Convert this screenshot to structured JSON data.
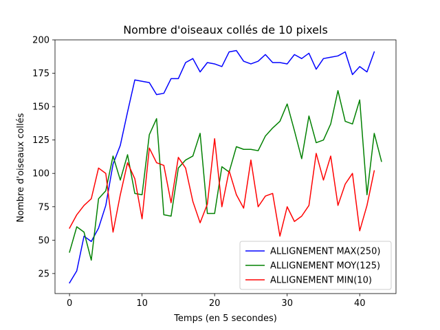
{
  "chart_data": {
    "type": "line",
    "title": "Nombre d'oiseaux collés de 10 pixels",
    "xlabel": "Temps (en 5 secondes)",
    "ylabel": "Nombre d'oiseaux collés",
    "xlim": [
      -2,
      45
    ],
    "ylim": [
      10,
      200
    ],
    "xticks": [
      0,
      10,
      20,
      30,
      40
    ],
    "yticks": [
      25,
      50,
      75,
      100,
      125,
      150,
      175,
      200
    ],
    "grid": false,
    "legend_position": "lower-right",
    "series": [
      {
        "name": "ALLIGNEMENT MAX(250)",
        "color": "#0000ff",
        "x": [
          0,
          1,
          2,
          3,
          4,
          5,
          6,
          7,
          8,
          9,
          10,
          11,
          12,
          13,
          14,
          15,
          16,
          17,
          18,
          19,
          20,
          21,
          22,
          23,
          24,
          25,
          26,
          27,
          28,
          29,
          30,
          31,
          32,
          33,
          34,
          35,
          36,
          37,
          38,
          39,
          40,
          41,
          42
        ],
        "values": [
          18,
          27,
          53,
          49,
          59,
          76,
          107,
          121,
          146,
          170,
          169,
          168,
          159,
          160,
          171,
          171,
          183,
          186,
          176,
          183,
          182,
          180,
          191,
          192,
          184,
          182,
          184,
          189,
          183,
          183,
          182,
          189,
          186,
          190,
          178,
          186,
          187,
          188,
          191,
          174,
          180,
          176,
          191
        ]
      },
      {
        "name": "ALLIGNEMENT MOY(125)",
        "color": "#008000",
        "x": [
          0,
          1,
          2,
          3,
          4,
          5,
          6,
          7,
          8,
          9,
          10,
          11,
          12,
          13,
          14,
          15,
          16,
          17,
          18,
          19,
          20,
          21,
          22,
          23,
          24,
          25,
          26,
          27,
          28,
          29,
          30,
          31,
          32,
          33,
          34,
          35,
          36,
          37,
          38,
          39,
          40,
          41,
          42,
          43
        ],
        "values": [
          41,
          60,
          56,
          35,
          81,
          87,
          113,
          95,
          114,
          85,
          84,
          129,
          141,
          69,
          68,
          104,
          110,
          113,
          130,
          70,
          70,
          105,
          101,
          120,
          118,
          118,
          117,
          128,
          134,
          139,
          152,
          132,
          111,
          143,
          123,
          125,
          137,
          162,
          139,
          137,
          155,
          84,
          130,
          109
        ]
      },
      {
        "name": "ALLIGNEMENT MIN(10)",
        "color": "#ff0000",
        "x": [
          0,
          1,
          2,
          3,
          4,
          5,
          6,
          7,
          8,
          9,
          10,
          11,
          12,
          13,
          14,
          15,
          16,
          17,
          18,
          19,
          20,
          21,
          22,
          23,
          24,
          25,
          26,
          27,
          28,
          29,
          30,
          31,
          32,
          33,
          34,
          35,
          36,
          37,
          38,
          39,
          40,
          41,
          42
        ],
        "values": [
          59,
          69,
          76,
          81,
          104,
          100,
          56,
          84,
          108,
          96,
          66,
          119,
          108,
          106,
          78,
          112,
          104,
          79,
          63,
          77,
          126,
          75,
          102,
          84,
          74,
          110,
          75,
          83,
          85,
          53,
          75,
          64,
          68,
          76,
          115,
          95,
          113,
          76,
          92,
          100,
          57,
          76,
          102
        ]
      }
    ]
  }
}
